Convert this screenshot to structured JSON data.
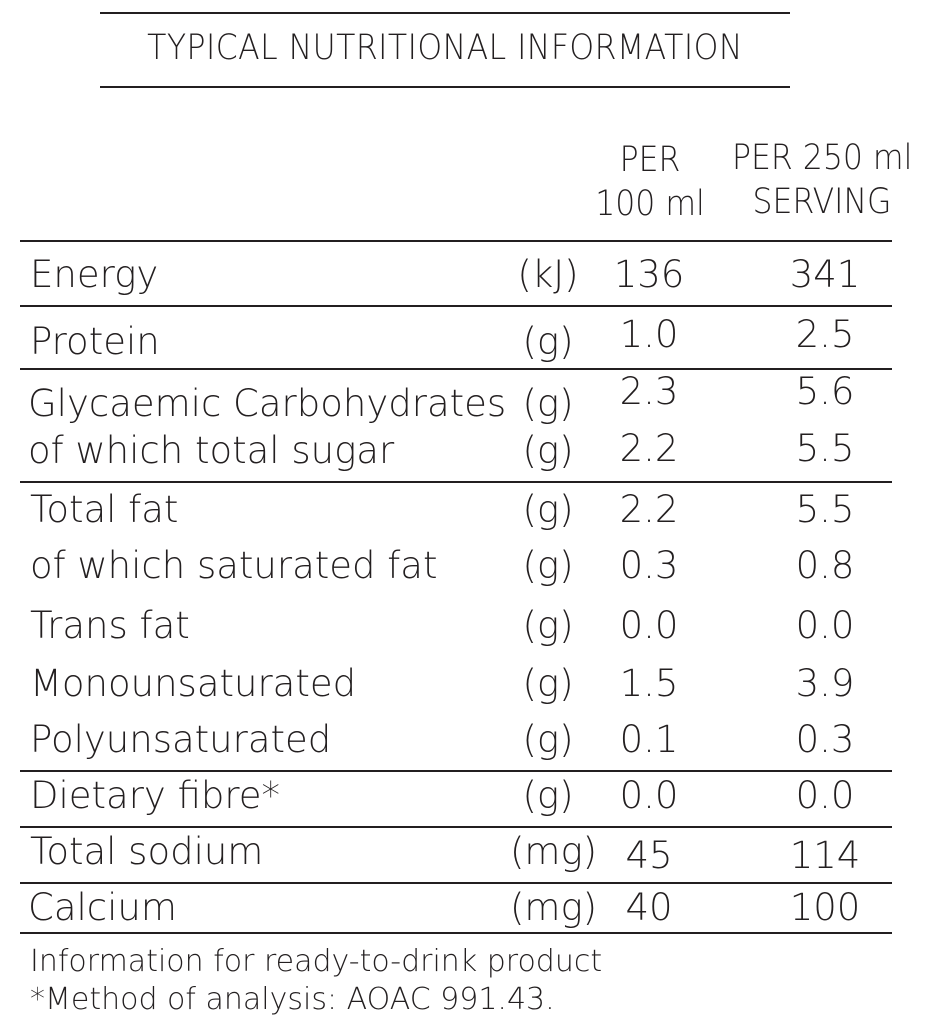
{
  "title": "TYPICAL NUTRITIONAL INFORMATION",
  "columns": {
    "per100": [
      "PER",
      "100 ml"
    ],
    "per250": [
      "PER 250 ml",
      "SERVING"
    ]
  },
  "rows": [
    {
      "label": "Energy",
      "unit": "(kJ)",
      "per100": "136",
      "per250": "341"
    },
    {
      "label": "Protein",
      "unit": "(g)",
      "per100": "1.0",
      "per250": "2.5"
    },
    {
      "label": "Glycaemic Carbohydrates",
      "unit": "(g)",
      "per100": "2.3",
      "per250": "5.6"
    },
    {
      "label": "of which total sugar",
      "unit": "(g)",
      "per100": "2.2",
      "per250": "5.5"
    },
    {
      "label": "Total fat",
      "unit": "(g)",
      "per100": "2.2",
      "per250": "5.5"
    },
    {
      "label": "of which saturated fat",
      "unit": "(g)",
      "per100": "0.3",
      "per250": "0.8"
    },
    {
      "label": "Trans fat",
      "unit": "(g)",
      "per100": "0.0",
      "per250": "0.0"
    },
    {
      "label": "Monounsaturated",
      "unit": "(g)",
      "per100": "1.5",
      "per250": "3.9"
    },
    {
      "label": "Polyunsaturated",
      "unit": "(g)",
      "per100": "0.1",
      "per250": "0.3"
    },
    {
      "label": "Dietary fibre*",
      "unit": "(g)",
      "per100": "0.0",
      "per250": "0.0"
    },
    {
      "label": "Total sodium",
      "unit": "(mg)",
      "per100": "45",
      "per250": "114"
    },
    {
      "label": "Calcium",
      "unit": "(mg)",
      "per100": "40",
      "per250": "100"
    }
  ],
  "footnotes": [
    "Information for ready-to-drink product",
    "*Method of analysis: AOAC 991.43."
  ]
}
